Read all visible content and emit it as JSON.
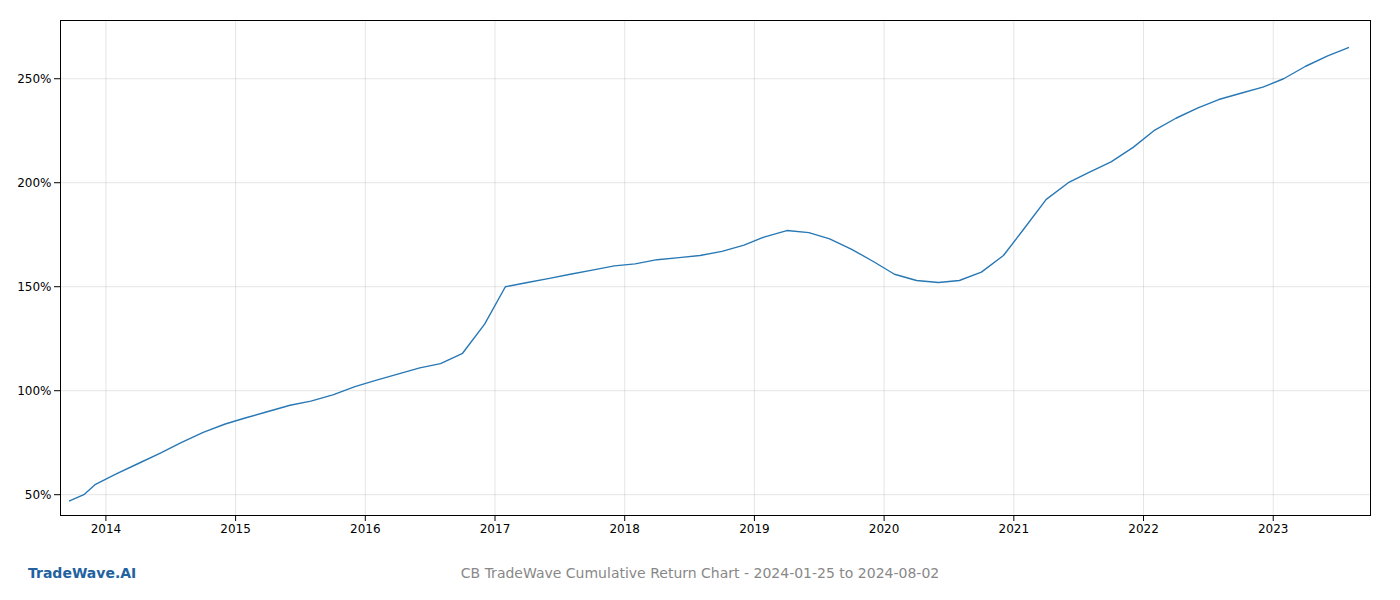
{
  "chart_data": {
    "type": "line",
    "title": "CB TradeWave Cumulative Return Chart - 2024-01-25 to 2024-08-02",
    "annotations": [
      "TradeWave.AI"
    ],
    "color": "#2878b5",
    "grid": true,
    "x": [
      2013.72,
      2013.83,
      2013.92,
      2014.08,
      2014.25,
      2014.42,
      2014.58,
      2014.75,
      2014.92,
      2015.08,
      2015.25,
      2015.42,
      2015.58,
      2015.75,
      2015.92,
      2016.08,
      2016.25,
      2016.42,
      2016.58,
      2016.75,
      2016.92,
      2017.08,
      2017.25,
      2017.42,
      2017.58,
      2017.75,
      2017.92,
      2018.08,
      2018.25,
      2018.42,
      2018.58,
      2018.75,
      2018.92,
      2019.08,
      2019.25,
      2019.42,
      2019.58,
      2019.75,
      2019.92,
      2020.08,
      2020.25,
      2020.42,
      2020.58,
      2020.75,
      2020.92,
      2021.08,
      2021.25,
      2021.42,
      2021.58,
      2021.75,
      2021.92,
      2022.08,
      2022.25,
      2022.42,
      2022.58,
      2022.75,
      2022.92,
      2023.08,
      2023.25,
      2023.42,
      2023.58
    ],
    "values": [
      47,
      50,
      55,
      60,
      65,
      70,
      75,
      80,
      84,
      87,
      90,
      93,
      95,
      98,
      102,
      105,
      108,
      111,
      113,
      118,
      132,
      150,
      152,
      154,
      156,
      158,
      160,
      161,
      163,
      164,
      165,
      167,
      170,
      174,
      177,
      176,
      173,
      168,
      162,
      156,
      153,
      152,
      153,
      157,
      165,
      178,
      192,
      200,
      205,
      210,
      217,
      225,
      231,
      236,
      240,
      243,
      246,
      250,
      256,
      261,
      265
    ],
    "xlim": [
      2013.65,
      2023.75
    ],
    "xticks": [
      2014,
      2015,
      2016,
      2017,
      2018,
      2019,
      2020,
      2021,
      2022,
      2023
    ],
    "ylim": [
      40,
      278
    ],
    "yticks": [
      {
        "value": 50,
        "label": "50%"
      },
      {
        "value": 100,
        "label": "100%"
      },
      {
        "value": 150,
        "label": "150%"
      },
      {
        "value": 200,
        "label": "200%"
      },
      {
        "value": 250,
        "label": "250%"
      }
    ]
  }
}
